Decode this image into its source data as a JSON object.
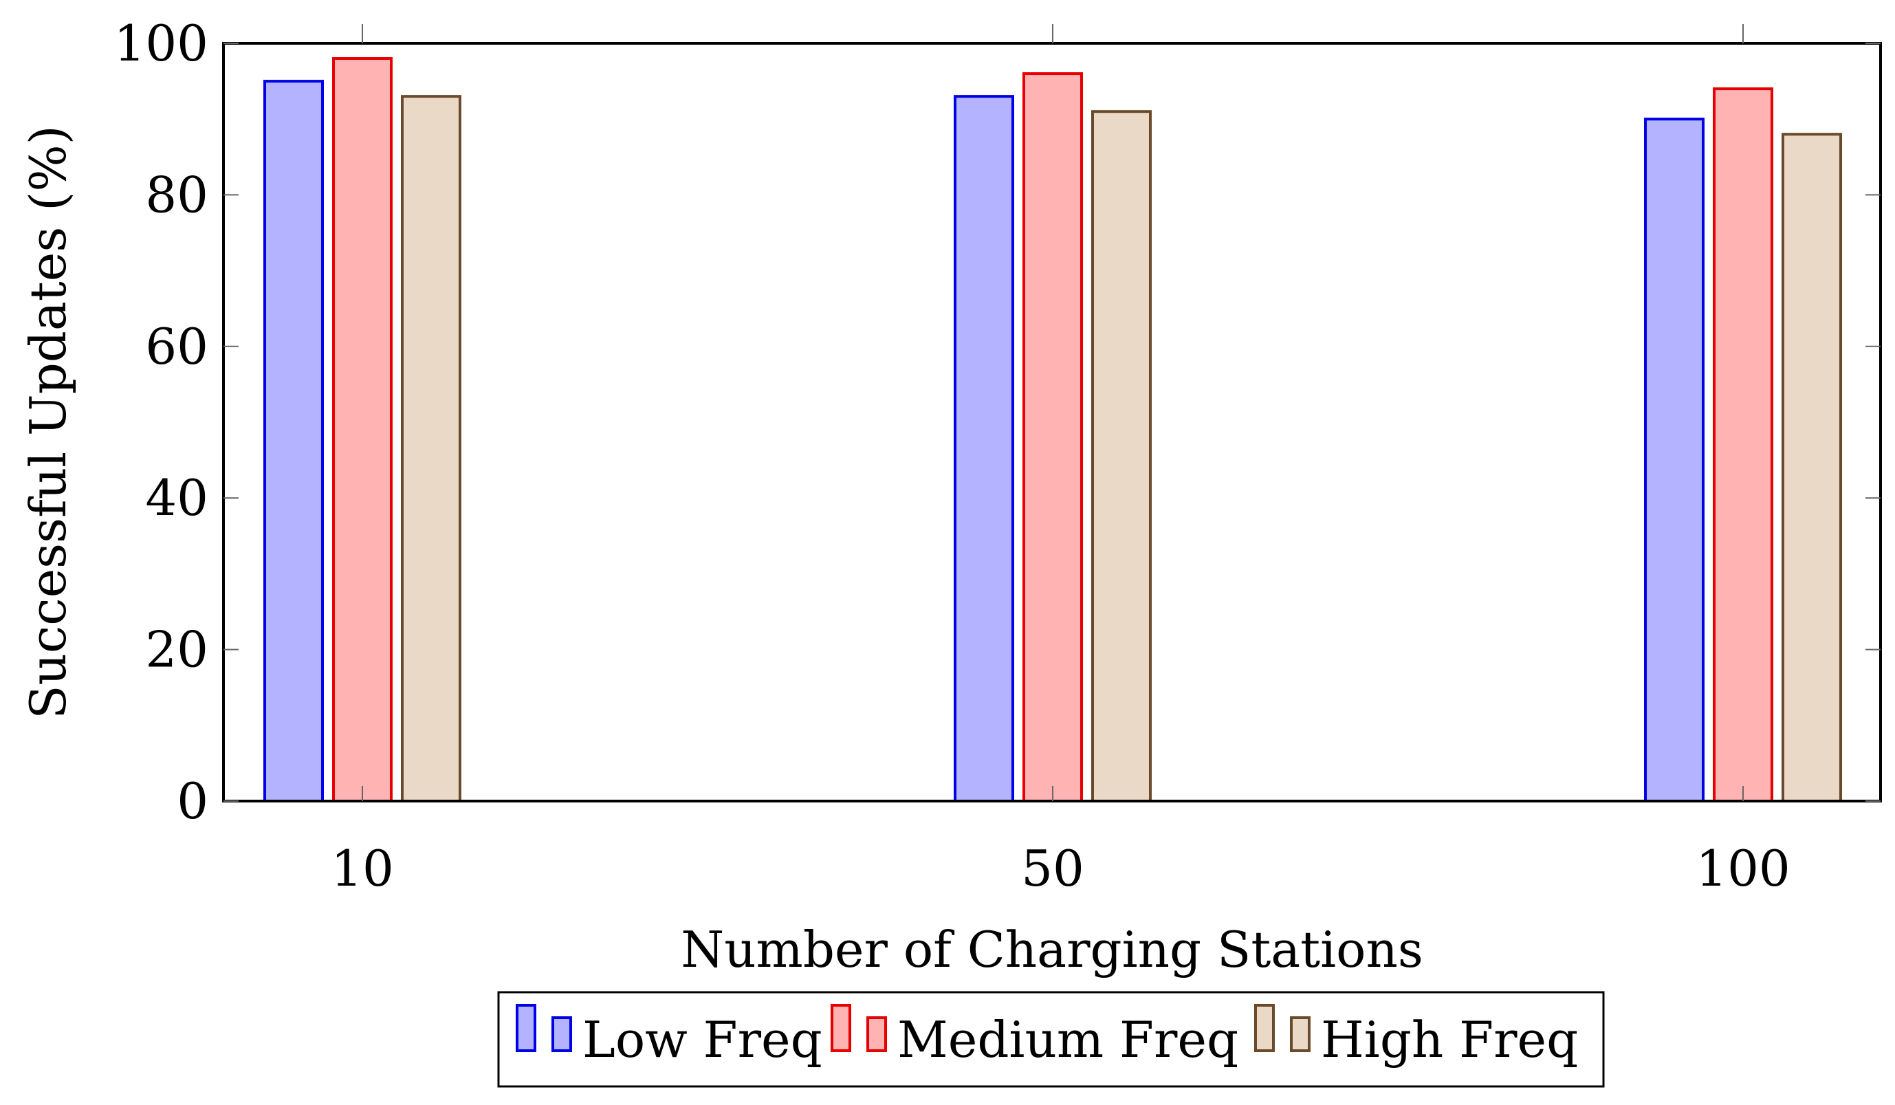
{
  "chart_data": {
    "type": "bar",
    "title": "",
    "xlabel": "Number of Charging Stations",
    "ylabel": "Successful Updates (%)",
    "categories": [
      "10",
      "50",
      "100"
    ],
    "ylim": [
      0,
      100
    ],
    "yticks": [
      "0",
      "20",
      "40",
      "60",
      "80",
      "100"
    ],
    "grid": false,
    "legend_position": "bottom-center",
    "series": [
      {
        "name": "Low Freq",
        "values": [
          95,
          93,
          90
        ],
        "fill": "#b3b3ff",
        "stroke": "#0000e6"
      },
      {
        "name": "Medium Freq",
        "values": [
          98,
          96,
          94
        ],
        "fill": "#ffb3b3",
        "stroke": "#e60000"
      },
      {
        "name": "High Freq",
        "values": [
          93,
          91,
          88
        ],
        "fill": "#ead9c6",
        "stroke": "#6b4a2b"
      }
    ]
  }
}
